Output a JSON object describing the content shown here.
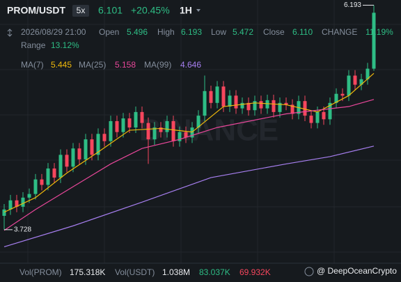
{
  "header": {
    "pair": "PROM/USDT",
    "leverage": "5x",
    "price": "6.101",
    "change": "+20.45%",
    "interval": "1H",
    "time": "2026/08/29 21:00",
    "open_label": "Open",
    "open": "5.496",
    "high_label": "High",
    "high": "6.193",
    "low_label": "Low",
    "low": "5.472",
    "close_label": "Close",
    "close": "6.110",
    "change_label": "CHANGE",
    "change_pct": "11.19%",
    "range_label": "Range",
    "range": "13.12%"
  },
  "chart_data": {
    "type": "candlestick",
    "watermark": "BINANCE",
    "ylim": [
      3.36,
      6.25
    ],
    "up_color": "#2ebd85",
    "down_color": "#f6465d",
    "open": [
      3.88,
      3.95,
      4.05,
      3.98,
      4.08,
      4.12,
      4.28,
      4.22,
      4.4,
      4.3,
      4.55,
      4.42,
      4.62,
      4.5,
      4.72,
      4.55,
      4.78,
      4.7,
      4.92,
      4.8,
      4.95,
      4.85,
      5.02,
      4.9,
      4.72,
      4.85,
      4.8,
      4.92,
      4.7,
      4.8,
      4.74,
      4.85,
      4.98,
      5.25,
      5.12,
      5.3,
      5.08,
      5.2,
      5.06,
      5.12,
      5.04,
      5.14,
      5.06,
      5.15,
      5.02,
      5.12,
      5.1,
      5.0,
      5.14,
      4.98,
      4.9,
      5.02,
      4.94,
      5.12,
      5.22,
      5.2,
      5.42,
      5.32,
      5.38,
      5.496
    ],
    "high": [
      4.01,
      4.11,
      4.11,
      4.14,
      4.18,
      4.34,
      4.34,
      4.46,
      4.46,
      4.61,
      4.61,
      4.68,
      4.68,
      4.78,
      4.78,
      4.84,
      4.84,
      4.98,
      4.98,
      5.01,
      5.01,
      5.08,
      5.08,
      4.96,
      4.91,
      4.91,
      4.98,
      4.98,
      4.86,
      4.86,
      4.91,
      5.04,
      5.42,
      5.31,
      5.36,
      5.36,
      5.26,
      5.26,
      5.18,
      5.18,
      5.2,
      5.2,
      5.21,
      5.21,
      5.18,
      5.18,
      5.16,
      5.2,
      5.2,
      5.04,
      5.08,
      5.08,
      5.18,
      5.28,
      5.28,
      5.48,
      5.48,
      5.44,
      5.56,
      6.193
    ],
    "low": [
      3.728,
      3.89,
      3.92,
      3.92,
      4.02,
      4.06,
      4.16,
      4.16,
      4.24,
      4.24,
      4.36,
      4.36,
      4.44,
      4.44,
      4.49,
      4.49,
      4.64,
      4.64,
      4.74,
      4.74,
      4.79,
      4.79,
      4.84,
      4.45,
      4.66,
      4.74,
      4.74,
      4.64,
      4.64,
      4.68,
      4.68,
      4.79,
      4.92,
      5.06,
      5.06,
      5.02,
      5.02,
      5.0,
      5.0,
      4.98,
      4.98,
      5.0,
      5.0,
      4.96,
      4.96,
      5.04,
      4.94,
      4.94,
      4.92,
      4.84,
      4.84,
      4.88,
      4.88,
      5.06,
      5.14,
      5.14,
      5.26,
      5.26,
      5.32,
      5.472
    ],
    "close": [
      3.95,
      4.05,
      3.98,
      4.08,
      4.12,
      4.28,
      4.22,
      4.4,
      4.3,
      4.55,
      4.42,
      4.62,
      4.5,
      4.72,
      4.55,
      4.78,
      4.7,
      4.92,
      4.8,
      4.95,
      4.85,
      5.02,
      4.9,
      4.72,
      4.85,
      4.8,
      4.92,
      4.7,
      4.8,
      4.74,
      4.85,
      4.98,
      5.25,
      5.12,
      5.3,
      5.08,
      5.2,
      5.06,
      5.12,
      5.04,
      5.14,
      5.06,
      5.15,
      5.02,
      5.12,
      5.1,
      5.0,
      5.14,
      4.98,
      4.9,
      5.02,
      4.94,
      5.12,
      5.22,
      5.2,
      5.42,
      5.32,
      5.38,
      5.496,
      6.11
    ],
    "ma": [
      {
        "name": "MA(7)",
        "color": "#f0b90b",
        "x": [
          0,
          5,
          10,
          15,
          20,
          25,
          30,
          35,
          40,
          45,
          50,
          55,
          59
        ],
        "values": [
          3.92,
          4.08,
          4.35,
          4.58,
          4.82,
          4.84,
          4.8,
          5.08,
          5.12,
          5.1,
          5.02,
          5.2,
          5.445
        ]
      },
      {
        "name": "MA(25)",
        "color": "#e8479a",
        "x": [
          0,
          5,
          11,
          17,
          22,
          28,
          34,
          45,
          55,
          59
        ],
        "values": [
          3.72,
          3.95,
          4.2,
          4.45,
          4.62,
          4.72,
          4.85,
          5.0,
          5.08,
          5.158
        ]
      },
      {
        "name": "MA(99)",
        "color": "#a77ff0",
        "x": [
          0,
          11,
          22,
          33,
          45,
          52,
          59
        ],
        "values": [
          3.54,
          3.77,
          4.03,
          4.3,
          4.45,
          4.53,
          4.646
        ]
      }
    ]
  },
  "footer": {
    "vol_base_label": "Vol(PROM)",
    "vol_base": "175.318K",
    "vol_quote_label": "Vol(USDT)",
    "vol_quote": "1.038M",
    "vol_ma1": "83.037K",
    "vol_ma2": "69.932K",
    "credit": "@ DeepOceanCrypto"
  }
}
